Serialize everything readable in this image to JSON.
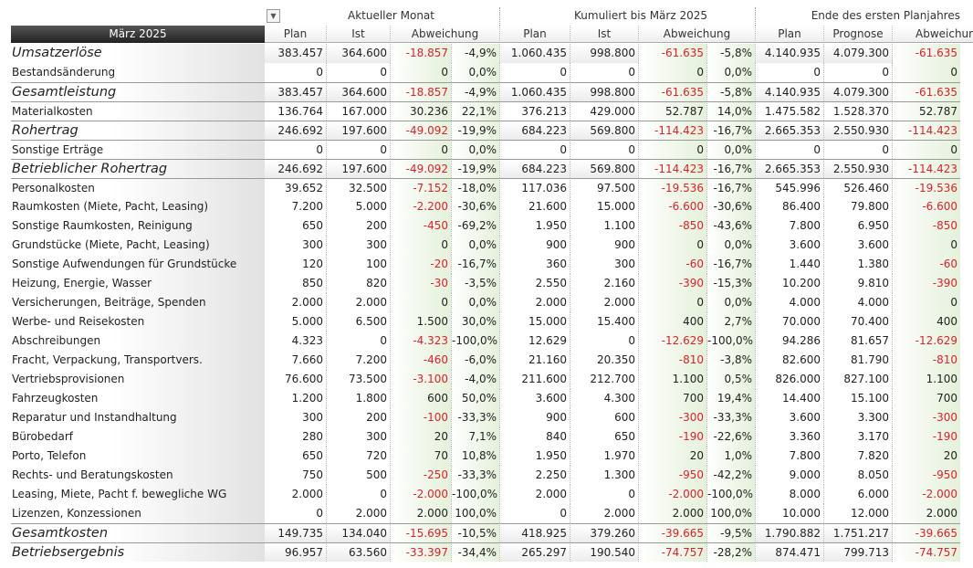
{
  "header": {
    "groups": [
      "Aktueller Monat",
      "Kumuliert bis März 2025",
      "Ende des ersten Planjahres"
    ],
    "period": "März 2025",
    "columns": [
      "Plan",
      "Ist",
      "Abweichung",
      "Plan",
      "Ist",
      "Abweichung",
      "Plan",
      "Prognose",
      "Abweichung"
    ]
  },
  "table": {
    "rows": [
      {
        "label": "Umsatzerlöse",
        "values": [
          "383.457",
          "364.600",
          "-18.857",
          "-4,9%",
          "1.060.435",
          "998.800",
          "-61.635",
          "-5,8%",
          "4.140.935",
          "4.079.300",
          "-61.635"
        ]
      },
      {
        "label": "Bestandsänderung",
        "values": [
          "0",
          "0",
          "0",
          "0,0%",
          "0",
          "0",
          "0",
          "0,0%",
          "0",
          "0",
          "0"
        ]
      },
      {
        "label": "Gesamtleistung",
        "values": [
          "383.457",
          "364.600",
          "-18.857",
          "-4,9%",
          "1.060.435",
          "998.800",
          "-61.635",
          "-5,8%",
          "4.140.935",
          "4.079.300",
          "-61.635"
        ]
      },
      {
        "label": "Materialkosten",
        "values": [
          "136.764",
          "167.000",
          "30.236",
          "22,1%",
          "376.213",
          "429.000",
          "52.787",
          "14,0%",
          "1.475.582",
          "1.528.370",
          "52.787"
        ]
      },
      {
        "label": "Rohertrag",
        "values": [
          "246.692",
          "197.600",
          "-49.092",
          "-19,9%",
          "684.223",
          "569.800",
          "-114.423",
          "-16,7%",
          "2.665.353",
          "2.550.930",
          "-114.423"
        ]
      },
      {
        "label": "Sonstige Erträge",
        "values": [
          "0",
          "0",
          "0",
          "0,0%",
          "0",
          "0",
          "0",
          "0,0%",
          "0",
          "0",
          "0"
        ]
      },
      {
        "label": "Betrieblicher Rohertrag",
        "values": [
          "246.692",
          "197.600",
          "-49.092",
          "-19,9%",
          "684.223",
          "569.800",
          "-114.423",
          "-16,7%",
          "2.665.353",
          "2.550.930",
          "-114.423"
        ]
      },
      {
        "label": "Personalkosten",
        "values": [
          "39.652",
          "32.500",
          "-7.152",
          "-18,0%",
          "117.036",
          "97.500",
          "-19.536",
          "-16,7%",
          "545.996",
          "526.460",
          "-19.536"
        ]
      },
      {
        "label": "Raumkosten (Miete, Pacht, Leasing)",
        "values": [
          "7.200",
          "5.000",
          "-2.200",
          "-30,6%",
          "21.600",
          "15.000",
          "-6.600",
          "-30,6%",
          "86.400",
          "79.800",
          "-6.600"
        ]
      },
      {
        "label": "Sonstige Raumkosten, Reinigung",
        "values": [
          "650",
          "200",
          "-450",
          "-69,2%",
          "1.950",
          "1.100",
          "-850",
          "-43,6%",
          "7.800",
          "6.950",
          "-850"
        ]
      },
      {
        "label": "Grundstücke (Miete, Pacht, Leasing)",
        "values": [
          "300",
          "300",
          "0",
          "0,0%",
          "900",
          "900",
          "0",
          "0,0%",
          "3.600",
          "3.600",
          "0"
        ]
      },
      {
        "label": "Sonstige Aufwendungen für Grundstücke",
        "values": [
          "120",
          "100",
          "-20",
          "-16,7%",
          "360",
          "300",
          "-60",
          "-16,7%",
          "1.440",
          "1.380",
          "-60"
        ]
      },
      {
        "label": "Heizung, Energie, Wasser",
        "values": [
          "850",
          "820",
          "-30",
          "-3,5%",
          "2.550",
          "2.160",
          "-390",
          "-15,3%",
          "10.200",
          "9.810",
          "-390"
        ]
      },
      {
        "label": "Versicherungen, Beiträge, Spenden",
        "values": [
          "2.000",
          "2.000",
          "0",
          "0,0%",
          "2.000",
          "2.000",
          "0",
          "0,0%",
          "4.000",
          "4.000",
          "0"
        ]
      },
      {
        "label": "Werbe- und Reisekosten",
        "values": [
          "5.000",
          "6.500",
          "1.500",
          "30,0%",
          "15.000",
          "15.400",
          "400",
          "2,7%",
          "70.000",
          "70.400",
          "400"
        ]
      },
      {
        "label": "Abschreibungen",
        "values": [
          "4.323",
          "0",
          "-4.323",
          "-100,0%",
          "12.629",
          "0",
          "-12.629",
          "-100,0%",
          "94.286",
          "81.657",
          "-12.629"
        ]
      },
      {
        "label": "Fracht, Verpackung, Transportvers.",
        "values": [
          "7.660",
          "7.200",
          "-460",
          "-6,0%",
          "21.160",
          "20.350",
          "-810",
          "-3,8%",
          "82.600",
          "81.790",
          "-810"
        ]
      },
      {
        "label": "Vertriebsprovisionen",
        "values": [
          "76.600",
          "73.500",
          "-3.100",
          "-4,0%",
          "211.600",
          "212.700",
          "1.100",
          "0,5%",
          "826.000",
          "827.100",
          "1.100"
        ]
      },
      {
        "label": "Fahrzeugkosten",
        "values": [
          "1.200",
          "1.800",
          "600",
          "50,0%",
          "3.600",
          "4.300",
          "700",
          "19,4%",
          "14.400",
          "15.100",
          "700"
        ]
      },
      {
        "label": "Reparatur und Instandhaltung",
        "values": [
          "300",
          "200",
          "-100",
          "-33,3%",
          "900",
          "600",
          "-300",
          "-33,3%",
          "3.600",
          "3.300",
          "-300"
        ]
      },
      {
        "label": "Bürobedarf",
        "values": [
          "280",
          "300",
          "20",
          "7,1%",
          "840",
          "650",
          "-190",
          "-22,6%",
          "3.360",
          "3.170",
          "-190"
        ]
      },
      {
        "label": "Porto, Telefon",
        "values": [
          "650",
          "720",
          "70",
          "10,8%",
          "1.950",
          "1.970",
          "20",
          "1,0%",
          "7.800",
          "7.820",
          "20"
        ]
      },
      {
        "label": "Rechts- und Beratungskosten",
        "values": [
          "750",
          "500",
          "-250",
          "-33,3%",
          "2.250",
          "1.300",
          "-950",
          "-42,2%",
          "9.000",
          "8.050",
          "-950"
        ]
      },
      {
        "label": "Leasing, Miete, Pacht f. bewegliche WG",
        "values": [
          "2.000",
          "0",
          "-2.000",
          "-100,0%",
          "2.000",
          "0",
          "-2.000",
          "-100,0%",
          "8.000",
          "6.000",
          "-2.000"
        ]
      },
      {
        "label": "Lizenzen, Konzessionen",
        "values": [
          "0",
          "2.000",
          "2.000",
          "100,0%",
          "0",
          "2.000",
          "2.000",
          "100,0%",
          "10.000",
          "12.000",
          "2.000"
        ]
      },
      {
        "label": "Gesamtkosten",
        "values": [
          "149.735",
          "134.040",
          "-15.695",
          "-10,5%",
          "418.925",
          "379.260",
          "-39.665",
          "-9,5%",
          "1.790.882",
          "1.751.217",
          "-39.665"
        ]
      },
      {
        "label": "Betriebsergebnis",
        "values": [
          "96.957",
          "63.560",
          "-33.397",
          "-34,4%",
          "265.297",
          "190.540",
          "-74.757",
          "-28,2%",
          "874.471",
          "799.713",
          "-74.757"
        ]
      }
    ]
  }
}
